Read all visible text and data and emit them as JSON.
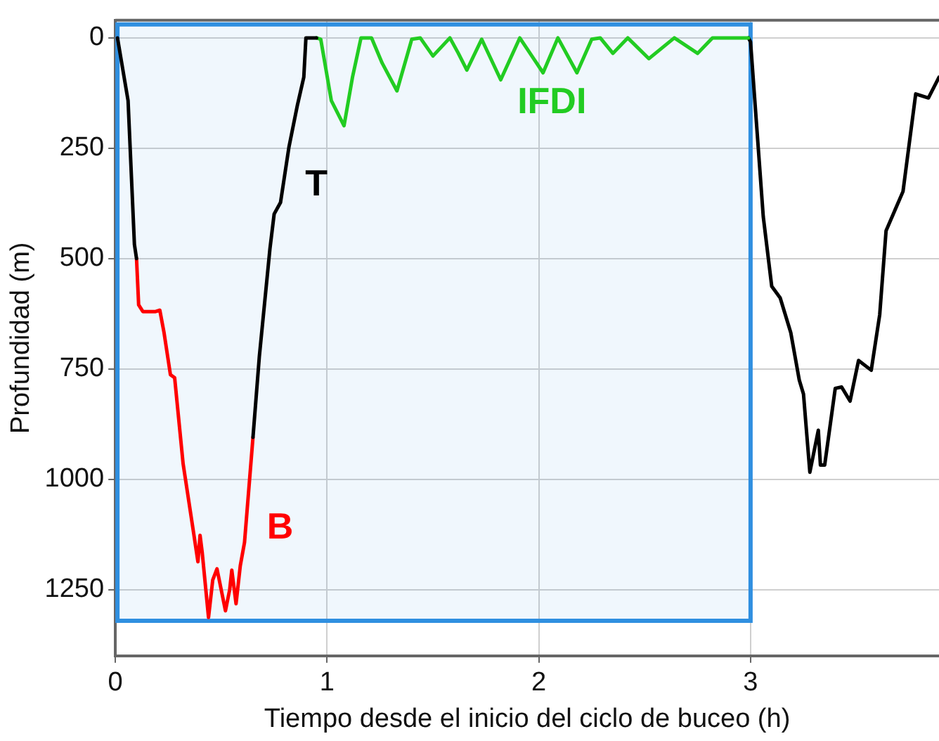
{
  "chart_data": {
    "type": "line",
    "xlabel": "Tiempo desde el inicio del ciclo de buceo (h)",
    "ylabel": "Profundidad (m)",
    "xlim": [
      0,
      3.89
    ],
    "xticks": [
      0,
      1,
      2,
      3
    ],
    "ylim": [
      1400,
      -40
    ],
    "yticks": [
      0,
      250,
      500,
      750,
      1000,
      1250
    ],
    "grid": true,
    "marker": "none",
    "line_style": "solid",
    "annotations": [
      "T",
      "B",
      "IFDI"
    ],
    "bands": [
      {
        "axis": "x",
        "from": 0,
        "to": 3,
        "color": "#2f8fe0"
      }
    ],
    "series": [
      {
        "color": "#000000",
        "x": [
          0.01,
          0.06,
          0.09,
          0.1,
          0.38,
          0.65,
          0.68,
          0.73,
          0.75,
          0.78,
          0.82,
          0.86,
          0.89,
          0.9,
          0.95
        ],
        "values": [
          0,
          142,
          468,
          500,
          null,
          905,
          722,
          478,
          399,
          373,
          247,
          152,
          89,
          0,
          0
        ]
      },
      {
        "color": "#ff0000",
        "x": [
          0.1,
          0.11,
          0.13,
          0.19,
          0.21,
          0.23,
          0.26,
          0.28,
          0.32,
          0.37,
          0.39,
          0.4,
          0.41,
          0.44,
          0.46,
          0.48,
          0.52,
          0.54,
          0.55,
          0.57,
          0.59,
          0.61,
          0.65
        ],
        "values": [
          500,
          605,
          620,
          620,
          617,
          668,
          763,
          770,
          965,
          1123,
          1187,
          1127,
          1165,
          1313,
          1228,
          1203,
          1298,
          1250,
          1206,
          1282,
          1196,
          1143,
          905
        ]
      },
      {
        "color": "#22cc22",
        "x": [
          0.95,
          0.97,
          1.02,
          1.08,
          1.12,
          1.16,
          1.21,
          1.26,
          1.33,
          1.4,
          1.44,
          1.5,
          1.58,
          1.62,
          1.66,
          1.73,
          1.82,
          1.91,
          2.02,
          2.09,
          2.18,
          2.25,
          2.29,
          2.35,
          2.42,
          2.52,
          2.64,
          2.75,
          2.82,
          2.99
        ],
        "values": [
          0,
          3,
          142,
          199,
          89,
          0,
          0,
          57,
          120,
          3,
          0,
          41,
          0,
          35,
          73,
          3,
          95,
          0,
          79,
          0,
          79,
          3,
          0,
          35,
          0,
          47,
          0,
          35,
          0,
          0
        ]
      },
      {
        "color": "#000000",
        "x": [
          2.99,
          3.0,
          3.06,
          3.1,
          3.14,
          3.19,
          3.23,
          3.25,
          3.28,
          3.32,
          3.33,
          3.35,
          3.4,
          3.43,
          3.47,
          3.51,
          3.57,
          3.61,
          3.64,
          3.72,
          3.78,
          3.84,
          3.89
        ],
        "values": [
          0,
          9,
          405,
          563,
          589,
          668,
          775,
          807,
          984,
          889,
          968,
          968,
          794,
          791,
          823,
          731,
          753,
          627,
          437,
          348,
          127,
          136,
          89
        ]
      }
    ]
  }
}
